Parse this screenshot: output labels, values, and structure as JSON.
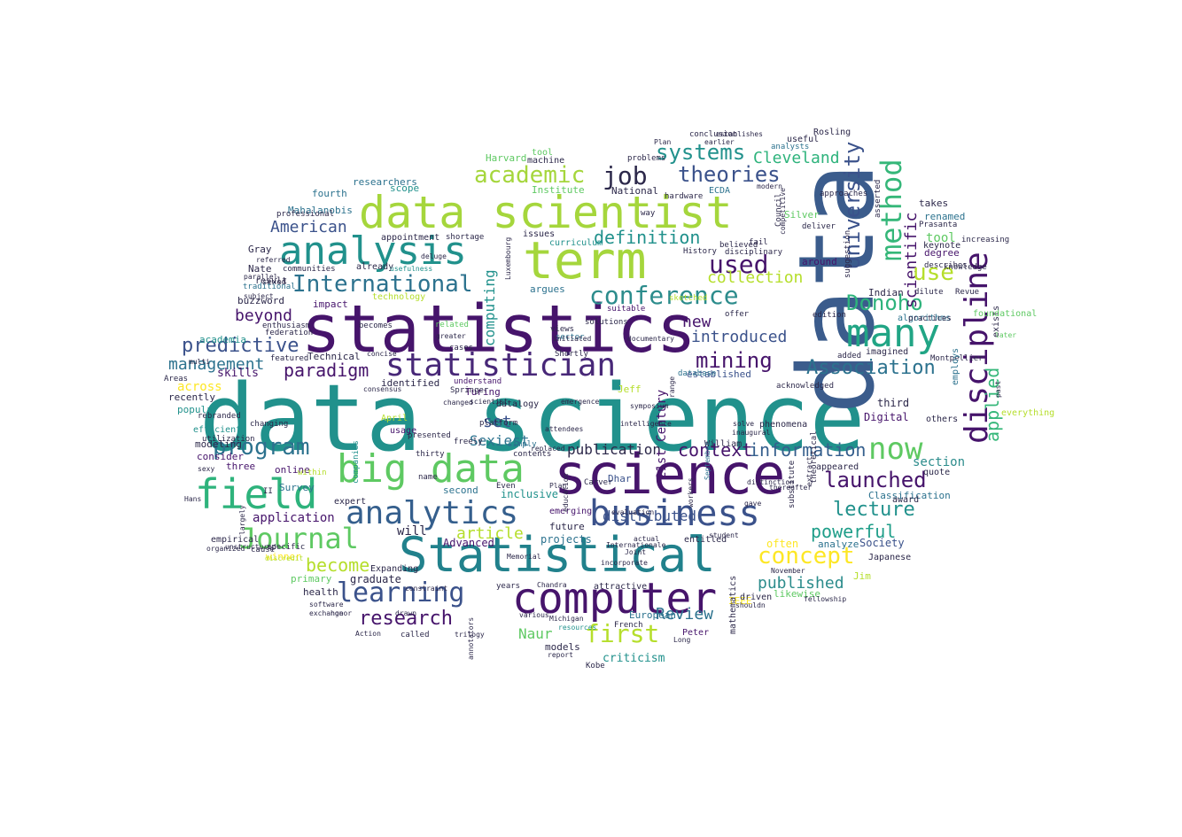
{
  "words": [
    {
      "text": "data science",
      "color": "#21918c"
    },
    {
      "text": "statistics",
      "color": "#46146b"
    },
    {
      "text": "data",
      "color": "#3b5c8c"
    },
    {
      "text": "science",
      "color": "#46146b"
    },
    {
      "text": "data scientist",
      "color": "#a5d63c"
    },
    {
      "text": "term",
      "color": "#a5d63c"
    },
    {
      "text": "Statistical",
      "color": "#21818c"
    },
    {
      "text": "analysis",
      "color": "#21918c"
    },
    {
      "text": "computer",
      "color": "#46146b"
    },
    {
      "text": "big data",
      "color": "#5ec962"
    },
    {
      "text": "field",
      "color": "#2eb37c"
    },
    {
      "text": "business",
      "color": "#3b528b"
    },
    {
      "text": "analytics",
      "color": "#355f8d"
    },
    {
      "text": "many",
      "color": "#21a585"
    },
    {
      "text": "discipline",
      "color": "#46146b"
    },
    {
      "text": "statistician",
      "color": "#482878"
    },
    {
      "text": "learning",
      "color": "#3b528b"
    },
    {
      "text": "Journal",
      "color": "#5ec962"
    },
    {
      "text": "International",
      "color": "#2c728e"
    },
    {
      "text": "method",
      "color": "#35b779"
    },
    {
      "text": "now",
      "color": "#5ec962"
    },
    {
      "text": "first",
      "color": "#b5de2b"
    },
    {
      "text": "conference",
      "color": "#2c8c8c"
    },
    {
      "text": "University",
      "color": "#3b528b"
    },
    {
      "text": "program",
      "color": "#2c728e"
    },
    {
      "text": "Donoho",
      "color": "#2eb37c"
    },
    {
      "text": "used",
      "color": "#46146b"
    },
    {
      "text": "launched",
      "color": "#46146b"
    },
    {
      "text": "Association",
      "color": "#2c728e"
    },
    {
      "text": "concept",
      "color": "#fde725"
    },
    {
      "text": "academic",
      "color": "#a5d63c"
    },
    {
      "text": "theories",
      "color": "#3b528b"
    },
    {
      "text": "systems",
      "color": "#21918c"
    },
    {
      "text": "lecture",
      "color": "#21918c"
    },
    {
      "text": "research",
      "color": "#46146b"
    },
    {
      "text": "predictive",
      "color": "#3b528b"
    },
    {
      "text": "scientific",
      "color": "#46146b"
    },
    {
      "text": "applied",
      "color": "#35b779"
    },
    {
      "text": "mining",
      "color": "#46146b"
    },
    {
      "text": "job",
      "color": "#2c284a"
    },
    {
      "text": "use",
      "color": "#b5de2b"
    },
    {
      "text": "definition",
      "color": "#21918c"
    },
    {
      "text": "information",
      "color": "#355f8d"
    },
    {
      "text": "set",
      "color": "#3b528b"
    },
    {
      "text": "Review",
      "color": "#2c728e"
    },
    {
      "text": "powerful",
      "color": "#1f9e89"
    },
    {
      "text": "published",
      "color": "#2c8c8c"
    },
    {
      "text": "collection",
      "color": "#b5de2b"
    },
    {
      "text": "context",
      "color": "#46146b"
    },
    {
      "text": "introduced",
      "color": "#3b528b"
    },
    {
      "text": "article",
      "color": "#b5de2b"
    },
    {
      "text": "become",
      "color": "#b5de2b"
    },
    {
      "text": "paradigm",
      "color": "#46146b"
    },
    {
      "text": "management",
      "color": "#2c728e"
    },
    {
      "text": "Cleveland",
      "color": "#2eb37c"
    },
    {
      "text": "American",
      "color": "#3b528b"
    },
    {
      "text": "Sexiest",
      "color": "#2c728e"
    },
    {
      "text": "tool",
      "color": "#5ec962"
    },
    {
      "text": "new",
      "color": "#46146b"
    },
    {
      "text": "beyond",
      "color": "#46146b"
    },
    {
      "text": "publication",
      "color": "#2c284a"
    },
    {
      "text": "application",
      "color": "#46146b"
    },
    {
      "text": "computing",
      "color": "#21918c"
    },
    {
      "text": "distributed",
      "color": "#3b528b"
    },
    {
      "text": "graduate",
      "color": "#2c284a"
    },
    {
      "text": "Naur",
      "color": "#5ec962"
    },
    {
      "text": "section",
      "color": "#2c8c8c"
    },
    {
      "text": "criticism",
      "color": "#21918c"
    },
    {
      "text": "21st Century",
      "color": "#46146b"
    },
    {
      "text": "will",
      "color": "#2c284a"
    },
    {
      "text": "across",
      "color": "#fde725"
    },
    {
      "text": "established",
      "color": "#3b528b"
    },
    {
      "text": "future",
      "color": "#2c284a"
    },
    {
      "text": "projects",
      "color": "#2c728e"
    },
    {
      "text": "Advanced",
      "color": "#46146b"
    },
    {
      "text": "inclusive",
      "color": "#21918c"
    },
    {
      "text": "third",
      "color": "#2c284a"
    },
    {
      "text": "Digital",
      "color": "#46146b"
    },
    {
      "text": "often",
      "color": "#fde725"
    },
    {
      "text": "Society",
      "color": "#3b528b"
    },
    {
      "text": "Classification",
      "color": "#2c728e"
    },
    {
      "text": "skills",
      "color": "#46146b"
    },
    {
      "text": "Technical",
      "color": "#2c284a"
    },
    {
      "text": "recently",
      "color": "#2c284a"
    },
    {
      "text": "popular",
      "color": "#21918c"
    },
    {
      "text": "modeling",
      "color": "#2c284a"
    },
    {
      "text": "consider",
      "color": "#46146b"
    },
    {
      "text": "primary",
      "color": "#5ec962"
    },
    {
      "text": "health",
      "color": "#2c284a"
    },
    {
      "text": "winner",
      "color": "#fde725"
    },
    {
      "text": "academia",
      "color": "#21918c"
    },
    {
      "text": "impact",
      "color": "#46146b"
    },
    {
      "text": "Survey",
      "color": "#2c728e"
    },
    {
      "text": "three",
      "color": "#46146b"
    },
    {
      "text": "companies",
      "color": "#21918c"
    },
    {
      "text": "Turing",
      "color": "#46146b"
    },
    {
      "text": "understand",
      "color": "#46146b"
    },
    {
      "text": "second",
      "color": "#2c728e"
    },
    {
      "text": "identified",
      "color": "#2c284a"
    },
    {
      "text": "online",
      "color": "#46146b"
    },
    {
      "text": "April",
      "color": "#b5de2b"
    },
    {
      "text": "usage",
      "color": "#46146b"
    },
    {
      "text": "Mahalanobis",
      "color": "#2c728e"
    },
    {
      "text": "researchers",
      "color": "#2c728e"
    },
    {
      "text": "fourth",
      "color": "#2c728e"
    },
    {
      "text": "scope",
      "color": "#21918c"
    },
    {
      "text": "Institute",
      "color": "#5ec962"
    },
    {
      "text": "Harvard",
      "color": "#5ec962"
    },
    {
      "text": "National",
      "color": "#2c284a"
    },
    {
      "text": "Silver",
      "color": "#5ec962"
    },
    {
      "text": "renamed",
      "color": "#2c728e"
    },
    {
      "text": "degree",
      "color": "#46146b"
    },
    {
      "text": "takes",
      "color": "#2c284a"
    },
    {
      "text": "around",
      "color": "#46146b"
    },
    {
      "text": "Indian",
      "color": "#2c284a"
    },
    {
      "text": "argues",
      "color": "#2c728e"
    },
    {
      "text": "suitable",
      "color": "#46146b"
    },
    {
      "text": "Jeff",
      "color": "#b5de2b"
    },
    {
      "text": "Dhar",
      "color": "#3b528b"
    },
    {
      "text": "emerging",
      "color": "#46146b"
    },
    {
      "text": "technology",
      "color": "#b5de2b"
    },
    {
      "text": "buzzword",
      "color": "#2c284a"
    },
    {
      "text": "result",
      "color": "#2c284a"
    },
    {
      "text": "already",
      "color": "#2c284a"
    },
    {
      "text": "Nate",
      "color": "#2c284a"
    },
    {
      "text": "Gray",
      "color": "#2c284a"
    },
    {
      "text": "Jim",
      "color": "#b5de2b"
    },
    {
      "text": "likewise",
      "color": "#5ec962"
    },
    {
      "text": "analyze",
      "color": "#2c728e"
    },
    {
      "text": "Japanese",
      "color": "#2c284a"
    },
    {
      "text": "IEEE",
      "color": "#fde725"
    },
    {
      "text": "European",
      "color": "#2c728e"
    },
    {
      "text": "models",
      "color": "#2c284a"
    },
    {
      "text": "Peter",
      "color": "#46146b"
    },
    {
      "text": "entitled",
      "color": "#2c284a"
    },
    {
      "text": "attractive",
      "color": "#2c284a"
    },
    {
      "text": "driven",
      "color": "#2c284a"
    },
    {
      "text": "mathematics",
      "color": "#2c284a"
    },
    {
      "text": "machine",
      "color": "#2c284a"
    },
    {
      "text": "issues",
      "color": "#2c284a"
    },
    {
      "text": "curriculum",
      "color": "#21918c"
    },
    {
      "text": "communities",
      "color": "#2c284a"
    },
    {
      "text": "usefulness",
      "color": "#21918c"
    },
    {
      "text": "sexed",
      "color": "#2c284a"
    },
    {
      "text": "datalogy",
      "color": "#2c284a"
    },
    {
      "text": "freely",
      "color": "#2c284a"
    },
    {
      "text": "thirty",
      "color": "#2c284a"
    },
    {
      "text": "name",
      "color": "#2c284a"
    },
    {
      "text": "Even",
      "color": "#2c284a"
    },
    {
      "text": "Hans",
      "color": "#2c284a"
    },
    {
      "text": "largely",
      "color": "#2c284a"
    },
    {
      "text": "expert",
      "color": "#2c284a"
    },
    {
      "text": "efficient",
      "color": "#21918c"
    },
    {
      "text": "Areas",
      "color": "#2c284a"
    },
    {
      "text": "algorithms",
      "color": "#2c728e"
    },
    {
      "text": "imagined",
      "color": "#2c284a"
    },
    {
      "text": "others",
      "color": "#2c284a"
    },
    {
      "text": "quote",
      "color": "#2c284a"
    },
    {
      "text": "award",
      "color": "#2c284a"
    },
    {
      "text": "exists",
      "color": "#2c284a"
    },
    {
      "text": "foundational",
      "color": "#5ec962"
    },
    {
      "text": "everything",
      "color": "#b5de2b"
    },
    {
      "text": "appeared",
      "color": "#2c284a"
    },
    {
      "text": "phenomena",
      "color": "#2c284a"
    },
    {
      "text": "William",
      "color": "#2c284a"
    },
    {
      "text": "solve",
      "color": "#2c284a"
    },
    {
      "text": "inaugural",
      "color": "#2c284a"
    },
    {
      "text": "database",
      "color": "#2c728e"
    },
    {
      "text": "range",
      "color": "#2c284a"
    },
    {
      "text": "conclusion",
      "color": "#2c284a"
    },
    {
      "text": "establishes",
      "color": "#2c284a"
    },
    {
      "text": "Plan",
      "color": "#2c284a"
    },
    {
      "text": "earlier",
      "color": "#2c284a"
    },
    {
      "text": "useful",
      "color": "#2c284a"
    },
    {
      "text": "Rosling",
      "color": "#2c284a"
    },
    {
      "text": "analysts",
      "color": "#2c728e"
    },
    {
      "text": "hardware",
      "color": "#2c284a"
    },
    {
      "text": "ECDA",
      "color": "#2c728e"
    },
    {
      "text": "modern",
      "color": "#2c284a"
    },
    {
      "text": "way",
      "color": "#2c284a"
    },
    {
      "text": "disciplinary",
      "color": "#2c284a"
    },
    {
      "text": "History",
      "color": "#2c284a"
    },
    {
      "text": "sketched",
      "color": "#b5de2b"
    },
    {
      "text": "offer",
      "color": "#2c284a"
    },
    {
      "text": "related",
      "color": "#5ec962"
    },
    {
      "text": "multi",
      "color": "#2c284a"
    },
    {
      "text": "featured",
      "color": "#2c284a"
    },
    {
      "text": "tool",
      "color": "#5ec962"
    },
    {
      "text": "problems",
      "color": "#2c284a"
    },
    {
      "text": "Prasanta",
      "color": "#2c284a"
    },
    {
      "text": "keynote",
      "color": "#2c284a"
    },
    {
      "text": "views",
      "color": "#2c284a"
    },
    {
      "text": "sector",
      "color": "#2c728e"
    },
    {
      "text": "simply",
      "color": "#2c728e"
    },
    {
      "text": "contents",
      "color": "#2c284a"
    },
    {
      "text": "years",
      "color": "#2c284a"
    },
    {
      "text": "various",
      "color": "#2c284a"
    },
    {
      "text": "Michigan",
      "color": "#2c284a"
    },
    {
      "text": "resources",
      "color": "#21918c"
    },
    {
      "text": "called",
      "color": "#2c284a"
    },
    {
      "text": "report",
      "color": "#2c284a"
    },
    {
      "text": "Kobe",
      "color": "#2c284a"
    },
    {
      "text": "French",
      "color": "#2c284a"
    },
    {
      "text": "Long",
      "color": "#2c284a"
    },
    {
      "text": "documentary",
      "color": "#2c284a"
    },
    {
      "text": "intelligence",
      "color": "#2c284a"
    },
    {
      "text": "symposium",
      "color": "#2c284a"
    },
    {
      "text": "September",
      "color": "#2c728e"
    },
    {
      "text": "substitute",
      "color": "#2c284a"
    },
    {
      "text": "extract",
      "color": "#2c284a"
    },
    {
      "text": "theoretical",
      "color": "#2c284a"
    },
    {
      "text": "knowledge",
      "color": "#2c284a"
    },
    {
      "text": "increasing",
      "color": "#2c284a"
    },
    {
      "text": "describes",
      "color": "#2c284a"
    },
    {
      "text": "dilute",
      "color": "#2c284a"
    },
    {
      "text": "practices",
      "color": "#2c284a"
    },
    {
      "text": "Montpellier",
      "color": "#2c284a"
    },
    {
      "text": "Revue",
      "color": "#2c284a"
    },
    {
      "text": "employs",
      "color": "#2c728e"
    },
    {
      "text": "past",
      "color": "#2c284a"
    },
    {
      "text": "later",
      "color": "#5ec962"
    },
    {
      "text": "Council",
      "color": "#2c284a"
    },
    {
      "text": "believed",
      "color": "#2c284a"
    },
    {
      "text": "fail",
      "color": "#2c284a"
    },
    {
      "text": "competitive",
      "color": "#2c284a"
    },
    {
      "text": "deliver",
      "color": "#2c284a"
    },
    {
      "text": "approaches",
      "color": "#2c284a"
    },
    {
      "text": "suggestion",
      "color": "#2c284a"
    },
    {
      "text": "asserted",
      "color": "#2c284a"
    },
    {
      "text": "edition",
      "color": "#2c284a"
    },
    {
      "text": "added",
      "color": "#2c284a"
    },
    {
      "text": "acknowledged",
      "color": "#2c284a"
    },
    {
      "text": "distinction",
      "color": "#2c284a"
    },
    {
      "text": "thereafter",
      "color": "#2c284a"
    },
    {
      "text": "November",
      "color": "#2c284a"
    },
    {
      "text": "fellowship",
      "color": "#2c284a"
    },
    {
      "text": "shouldn",
      "color": "#2c284a"
    },
    {
      "text": "gave",
      "color": "#2c284a"
    },
    {
      "text": "student",
      "color": "#2c284a"
    },
    {
      "text": "workers",
      "color": "#2c284a"
    },
    {
      "text": "Internationale",
      "color": "#2c284a"
    },
    {
      "text": "incorporate",
      "color": "#2c284a"
    },
    {
      "text": "actual",
      "color": "#2c284a"
    },
    {
      "text": "Joint",
      "color": "#2c284a"
    },
    {
      "text": "evaluation",
      "color": "#2c284a"
    },
    {
      "text": "Expanding",
      "color": "#2c284a"
    },
    {
      "text": "Memorial",
      "color": "#2c284a"
    },
    {
      "text": "Chandra",
      "color": "#2c284a"
    },
    {
      "text": "constraint",
      "color": "#2c284a"
    },
    {
      "text": "annotators",
      "color": "#2c284a"
    },
    {
      "text": "software",
      "color": "#2c284a"
    },
    {
      "text": "exchange",
      "color": "#2c284a"
    },
    {
      "text": "honor",
      "color": "#2c284a"
    },
    {
      "text": "drawn",
      "color": "#2c284a"
    },
    {
      "text": "Action",
      "color": "#2c284a"
    },
    {
      "text": "trilogy",
      "color": "#2c284a"
    },
    {
      "text": "discredit",
      "color": "#b5de2b"
    },
    {
      "text": "unstructured",
      "color": "#2c284a"
    },
    {
      "text": "organized",
      "color": "#2c284a"
    },
    {
      "text": "empirical",
      "color": "#2c284a"
    },
    {
      "text": "specific",
      "color": "#2c284a"
    },
    {
      "text": "cause",
      "color": "#2c284a"
    },
    {
      "text": "sexy",
      "color": "#2c284a"
    },
    {
      "text": "II",
      "color": "#2c284a"
    },
    {
      "text": "within",
      "color": "#b5de2b"
    },
    {
      "text": "changing",
      "color": "#2c284a"
    },
    {
      "text": "rebranded",
      "color": "#2c284a"
    },
    {
      "text": "utilization",
      "color": "#2c284a"
    },
    {
      "text": "enthusiasm",
      "color": "#2c284a"
    },
    {
      "text": "federation",
      "color": "#2c284a"
    },
    {
      "text": "subject",
      "color": "#2c284a"
    },
    {
      "text": "traditional",
      "color": "#2c728e"
    },
    {
      "text": "parallel",
      "color": "#2c284a"
    },
    {
      "text": "referred",
      "color": "#2c284a"
    },
    {
      "text": "professional",
      "color": "#2c284a"
    },
    {
      "text": "appointment",
      "color": "#2c284a"
    },
    {
      "text": "deluge",
      "color": "#2c284a"
    },
    {
      "text": "shortage",
      "color": "#2c284a"
    },
    {
      "text": "Luxembourg",
      "color": "#2c284a"
    },
    {
      "text": "solutions",
      "color": "#2c284a"
    },
    {
      "text": "initiated",
      "color": "#2c284a"
    },
    {
      "text": "Shortly",
      "color": "#2c284a"
    },
    {
      "text": "cases",
      "color": "#2c284a"
    },
    {
      "text": "greater",
      "color": "#2c284a"
    },
    {
      "text": "becomes",
      "color": "#2c284a"
    },
    {
      "text": "concise",
      "color": "#2c284a"
    },
    {
      "text": "consensus",
      "color": "#2c284a"
    },
    {
      "text": "Springer",
      "color": "#2c284a"
    },
    {
      "text": "scientist",
      "color": "#2c284a"
    },
    {
      "text": "changed",
      "color": "#2c284a"
    },
    {
      "text": "presented",
      "color": "#2c284a"
    },
    {
      "text": "platform",
      "color": "#2c284a"
    },
    {
      "text": "replaced",
      "color": "#2c284a"
    },
    {
      "text": "attendees",
      "color": "#2c284a"
    },
    {
      "text": "emergence",
      "color": "#2c284a"
    },
    {
      "text": "Carver",
      "color": "#2c284a"
    },
    {
      "text": "education",
      "color": "#2c284a"
    },
    {
      "text": "Plan",
      "color": "#2c284a"
    }
  ]
}
